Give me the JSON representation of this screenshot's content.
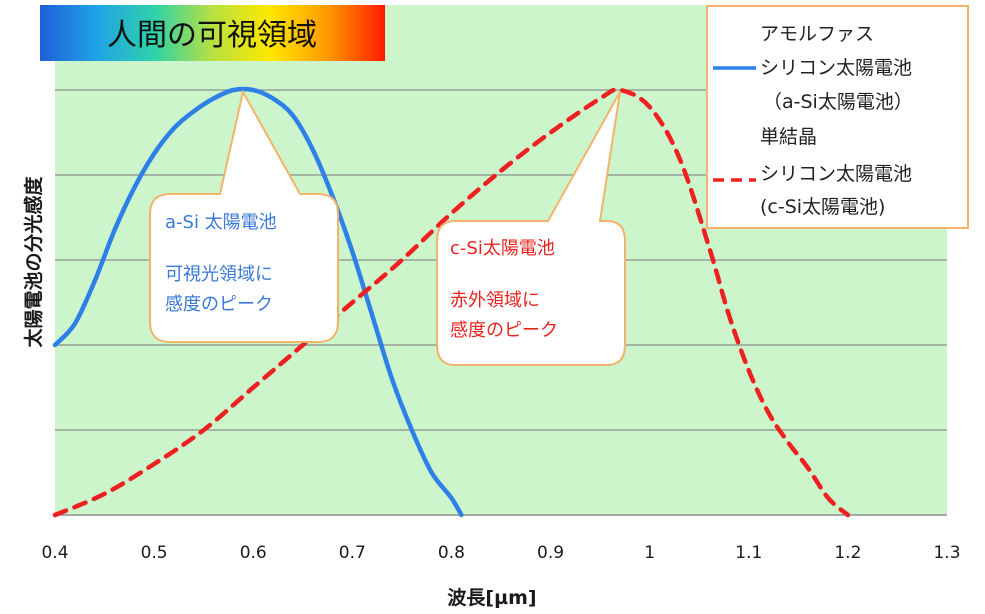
{
  "banner": {
    "label": "人間の可視領域",
    "gradient": [
      "#1f5fd6",
      "#1fa4e6",
      "#2fd2a8",
      "#b8e040",
      "#ffe800",
      "#ff9a00",
      "#ff1a00"
    ]
  },
  "colors": {
    "plot_bg": "#ccf5cc",
    "gridline": "#8a8f8a",
    "a_si": "#2f7fe8",
    "c_si": "#ee2020",
    "callout_border": "#f2b46a"
  },
  "legend": {
    "a_si": [
      "アモルファス",
      "シリコン太陽電池",
      "（a-Si太陽電池）"
    ],
    "c_si": [
      "単結晶",
      "シリコン太陽電池",
      "(c-Si太陽電池)"
    ]
  },
  "callouts": {
    "a_si": [
      "a-Si 太陽電池",
      "可視光領域に",
      "感度のピーク"
    ],
    "c_si": [
      "c-Si太陽電池",
      "赤外領域に",
      "感度のピーク"
    ]
  },
  "chart_data": {
    "type": "line",
    "xlabel": "波長[µm]",
    "ylabel": "太陽電池の分光感度",
    "xlim": [
      0.4,
      1.3
    ],
    "ylim": [
      0,
      1
    ],
    "x_ticks": [
      "0.4",
      "0.5",
      "0.6",
      "0.7",
      "0.8",
      "0.9",
      "1",
      "1.1",
      "1.2",
      "1.3"
    ],
    "y_ticks_labeled": false,
    "grid": "horizontal",
    "legend_position": "top-right",
    "series": [
      {
        "name": "アモルファスシリコン太陽電池（a-Si太陽電池）",
        "style": "solid",
        "x": [
          0.4,
          0.42,
          0.44,
          0.46,
          0.48,
          0.5,
          0.52,
          0.54,
          0.56,
          0.58,
          0.6,
          0.62,
          0.64,
          0.66,
          0.68,
          0.7,
          0.72,
          0.74,
          0.76,
          0.78,
          0.8,
          0.81
        ],
        "y": [
          0.4,
          0.45,
          0.55,
          0.67,
          0.77,
          0.85,
          0.91,
          0.95,
          0.98,
          1.0,
          1.0,
          0.98,
          0.94,
          0.86,
          0.75,
          0.62,
          0.47,
          0.32,
          0.2,
          0.1,
          0.04,
          0.0
        ]
      },
      {
        "name": "単結晶シリコン太陽電池(c-Si太陽電池)",
        "style": "dashed",
        "x": [
          0.4,
          0.45,
          0.5,
          0.55,
          0.6,
          0.65,
          0.7,
          0.75,
          0.8,
          0.85,
          0.9,
          0.95,
          0.97,
          1.0,
          1.03,
          1.06,
          1.08,
          1.1,
          1.12,
          1.14,
          1.16,
          1.18,
          1.2
        ],
        "y": [
          0.0,
          0.05,
          0.12,
          0.2,
          0.3,
          0.4,
          0.5,
          0.6,
          0.71,
          0.81,
          0.9,
          0.98,
          1.0,
          0.96,
          0.84,
          0.63,
          0.47,
          0.34,
          0.24,
          0.17,
          0.11,
          0.04,
          0.0
        ]
      }
    ]
  }
}
